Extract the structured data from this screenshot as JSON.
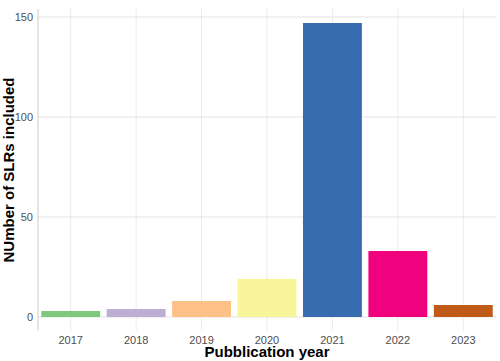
{
  "chart_data": {
    "type": "bar",
    "x_label": "Pubblication year",
    "y_label": "NUmber of SLRs included",
    "categories": [
      "2017",
      "2018",
      "2019",
      "2020",
      "2021",
      "2022",
      "2023"
    ],
    "values": [
      3,
      4,
      8,
      19,
      147,
      33,
      6
    ],
    "colors": [
      "#7fc97f",
      "#beaed4",
      "#fdc086",
      "#f8f49a",
      "#386cb0",
      "#f0027f",
      "#bf5b17"
    ],
    "ylim": [
      -7,
      154
    ],
    "yticks": [
      0,
      50,
      100,
      150
    ],
    "grid": true
  }
}
